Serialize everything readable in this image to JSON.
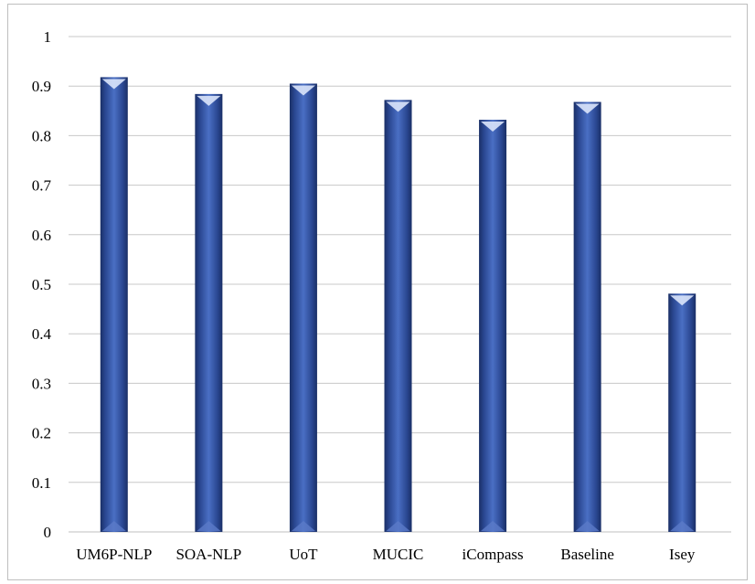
{
  "chart_data": {
    "type": "bar",
    "categories": [
      "UM6P-NLP",
      "SOA-NLP",
      "UoT",
      "MUCIC",
      "iCompass",
      "Baseline",
      "Isey"
    ],
    "values": [
      0.918,
      0.884,
      0.905,
      0.872,
      0.832,
      0.868,
      0.481
    ],
    "ylim": [
      0,
      1
    ],
    "yticks": [
      "0",
      "0.1",
      "0.2",
      "0.3",
      "0.4",
      "0.5",
      "0.6",
      "0.7",
      "0.8",
      "0.9",
      "1"
    ],
    "grid": true,
    "legend": "none",
    "title": "",
    "xlabel": "",
    "ylabel": "",
    "colors": {
      "bar": "#2e4f9b",
      "bar_dark": "#1a2f66",
      "bar_light": "#6f8fd6",
      "grid": "#c8c8c8",
      "axis": "#bfbfbf"
    }
  }
}
